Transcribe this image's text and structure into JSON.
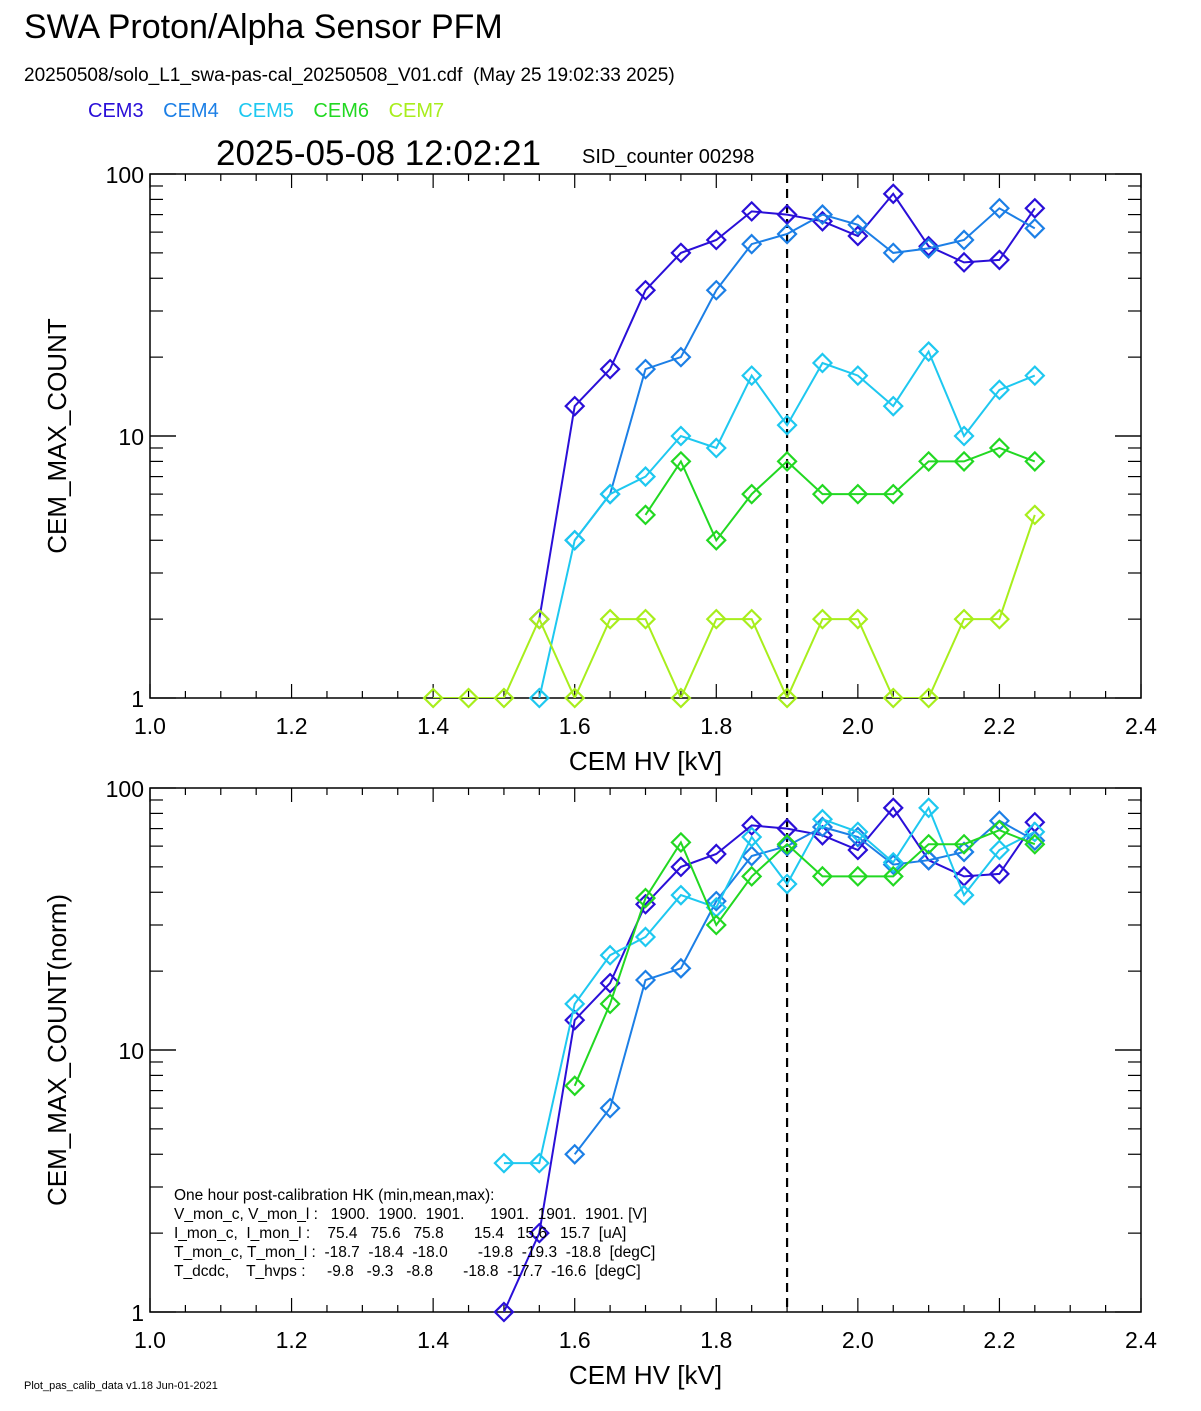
{
  "header": {
    "title": "SWA Proton/Alpha Sensor PFM",
    "subtitle": "20250508/solo_L1_swa-pas-cal_20250508_V01.cdf  (May 25 19:02:33 2025)",
    "timestamp": "2025-05-08 12:02:21",
    "sid_counter": "SID_counter 00298"
  },
  "legend": [
    {
      "label": "CEM3",
      "color": "#2a0fd8"
    },
    {
      "label": "CEM4",
      "color": "#1c7fe6"
    },
    {
      "label": "CEM5",
      "color": "#1ec8f0"
    },
    {
      "label": "CEM6",
      "color": "#22d822"
    },
    {
      "label": "CEM7",
      "color": "#a8ee1c"
    }
  ],
  "hk_box": {
    "lines": [
      "One hour post-calibration HK (min,mean,max):",
      "V_mon_c, V_mon_l :   1900.  1900.  1901.      1901.  1901.  1901. [V]",
      "I_mon_c,  I_mon_l :    75.4   75.6   75.8       15.4   15.6   15.7  [uA]",
      "T_mon_c, T_mon_l :  -18.7  -18.4  -18.0       -19.8  -19.3  -18.8  [degC]",
      "T_dcdc,    T_hvps :     -9.8   -9.3   -8.8       -18.8  -17.7  -16.6  [degC]"
    ]
  },
  "footer": "Plot_pas_calib_data v1.18 Jun-01-2021",
  "chart_data": [
    {
      "type": "line",
      "xlabel": "CEM HV [kV]",
      "ylabel": "CEM_MAX_COUNT",
      "xlim": [
        1.0,
        2.4
      ],
      "ylim": [
        1,
        100
      ],
      "yscale": "log",
      "x_ticks": [
        "1.0",
        "1.2",
        "1.4",
        "1.6",
        "1.8",
        "2.0",
        "2.2",
        "2.4"
      ],
      "y_ticks": [
        "1",
        "10",
        "100"
      ],
      "marker": "diamond",
      "vline_x": 1.9,
      "series": [
        {
          "name": "CEM3",
          "color": "#2a0fd8",
          "x": [
            1.55,
            1.6,
            1.65,
            1.7,
            1.75,
            1.8,
            1.85,
            1.9,
            1.95,
            2.0,
            2.05,
            2.1,
            2.15,
            2.2,
            2.25
          ],
          "y": [
            2,
            13,
            18,
            36,
            50,
            56,
            72,
            70,
            66,
            58,
            84,
            53,
            46,
            47,
            74
          ]
        },
        {
          "name": "CEM4",
          "color": "#1c7fe6",
          "x": [
            1.6,
            1.65,
            1.7,
            1.75,
            1.8,
            1.85,
            1.9,
            1.95,
            2.0,
            2.05,
            2.1,
            2.15,
            2.2,
            2.25
          ],
          "y": [
            4,
            6,
            18,
            20,
            36,
            54,
            59,
            70,
            64,
            50,
            52,
            56,
            74,
            62
          ]
        },
        {
          "name": "CEM5",
          "color": "#1ec8f0",
          "x": [
            1.55,
            1.6,
            1.65,
            1.7,
            1.75,
            1.8,
            1.85,
            1.9,
            1.95,
            2.0,
            2.05,
            2.1,
            2.15,
            2.2,
            2.25
          ],
          "y": [
            1,
            4,
            6,
            7,
            10,
            9,
            17,
            11,
            19,
            17,
            13,
            21,
            10,
            15,
            17
          ]
        },
        {
          "name": "CEM6",
          "color": "#22d822",
          "x": [
            1.7,
            1.75,
            1.8,
            1.85,
            1.9,
            1.95,
            2.0,
            2.05,
            2.1,
            2.15,
            2.2,
            2.25
          ],
          "y": [
            5,
            8,
            4,
            6,
            8,
            6,
            6,
            6,
            8,
            8,
            9,
            8
          ]
        },
        {
          "name": "CEM7",
          "color": "#a8ee1c",
          "x": [
            1.4,
            1.45,
            1.5,
            1.55,
            1.6,
            1.65,
            1.7,
            1.75,
            1.8,
            1.85,
            1.9,
            1.95,
            2.0,
            2.05,
            2.1,
            2.15,
            2.2,
            2.25
          ],
          "y": [
            1,
            1,
            1,
            2,
            1,
            2,
            2,
            1,
            2,
            2,
            1,
            2,
            2,
            1,
            1,
            2,
            2,
            5
          ]
        }
      ]
    },
    {
      "type": "line",
      "xlabel": "CEM HV [kV]",
      "ylabel": "CEM_MAX_COUNT(norm)",
      "xlim": [
        1.0,
        2.4
      ],
      "ylim": [
        1,
        100
      ],
      "yscale": "log",
      "x_ticks": [
        "1.0",
        "1.2",
        "1.4",
        "1.6",
        "1.8",
        "2.0",
        "2.2",
        "2.4"
      ],
      "y_ticks": [
        "1",
        "10",
        "100"
      ],
      "marker": "diamond",
      "vline_x": 1.9,
      "series": [
        {
          "name": "CEM3",
          "color": "#2a0fd8",
          "x": [
            1.5,
            1.55,
            1.6,
            1.65,
            1.7,
            1.75,
            1.8,
            1.85,
            1.9,
            1.95,
            2.0,
            2.05,
            2.1,
            2.15,
            2.2,
            2.25
          ],
          "y": [
            1,
            2,
            13,
            18,
            36,
            50,
            56,
            72,
            70,
            66,
            58,
            84,
            53,
            46,
            47,
            74
          ]
        },
        {
          "name": "CEM4",
          "color": "#1c7fe6",
          "x": [
            1.6,
            1.65,
            1.7,
            1.75,
            1.8,
            1.85,
            1.9,
            1.95,
            2.0,
            2.05,
            2.1,
            2.15,
            2.2,
            2.25
          ],
          "y": [
            4,
            6,
            18.5,
            20.5,
            37,
            55,
            60,
            71,
            65,
            51,
            53,
            57,
            75,
            63
          ]
        },
        {
          "name": "CEM5",
          "color": "#1ec8f0",
          "x": [
            1.5,
            1.55,
            1.6,
            1.65,
            1.7,
            1.75,
            1.8,
            1.85,
            1.9,
            1.95,
            2.0,
            2.05,
            2.1,
            2.15,
            2.2,
            2.25
          ],
          "y": [
            3.7,
            3.7,
            15,
            23,
            27,
            39,
            35,
            65,
            43,
            76,
            68,
            52,
            84,
            39,
            58,
            68
          ]
        },
        {
          "name": "CEM6",
          "color": "#22d822",
          "x": [
            1.6,
            1.65,
            1.7,
            1.75,
            1.8,
            1.85,
            1.9,
            1.95,
            2.0,
            2.05,
            2.1,
            2.15,
            2.2,
            2.25
          ],
          "y": [
            7.3,
            15,
            38,
            62,
            30,
            46,
            61,
            46,
            46,
            46,
            61,
            61,
            69,
            61
          ]
        }
      ]
    }
  ]
}
